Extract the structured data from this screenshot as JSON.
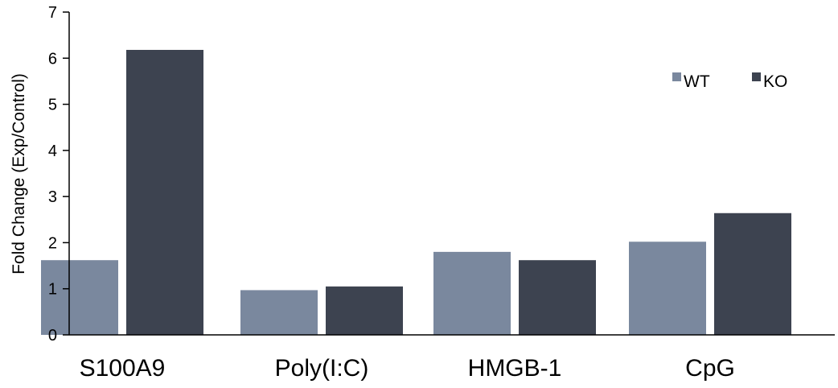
{
  "chart_data": {
    "type": "bar",
    "title": "",
    "xlabel": "",
    "ylabel": "Fold Change (Exp/Control)",
    "ylim": [
      0,
      7
    ],
    "yticks": [
      "0",
      "1",
      "2",
      "3",
      "4",
      "5",
      "6",
      "7"
    ],
    "grid": false,
    "legend_position": "top-right",
    "categories": [
      "S100A9",
      "Poly(I:C)",
      "HMGB-1",
      "CpG"
    ],
    "series": [
      {
        "name": "WT",
        "color": "#7a889e",
        "values": [
          1.62,
          0.97,
          1.8,
          2.02
        ]
      },
      {
        "name": "KO",
        "color": "#3d4350",
        "values": [
          6.18,
          1.05,
          1.62,
          2.64
        ]
      }
    ]
  }
}
